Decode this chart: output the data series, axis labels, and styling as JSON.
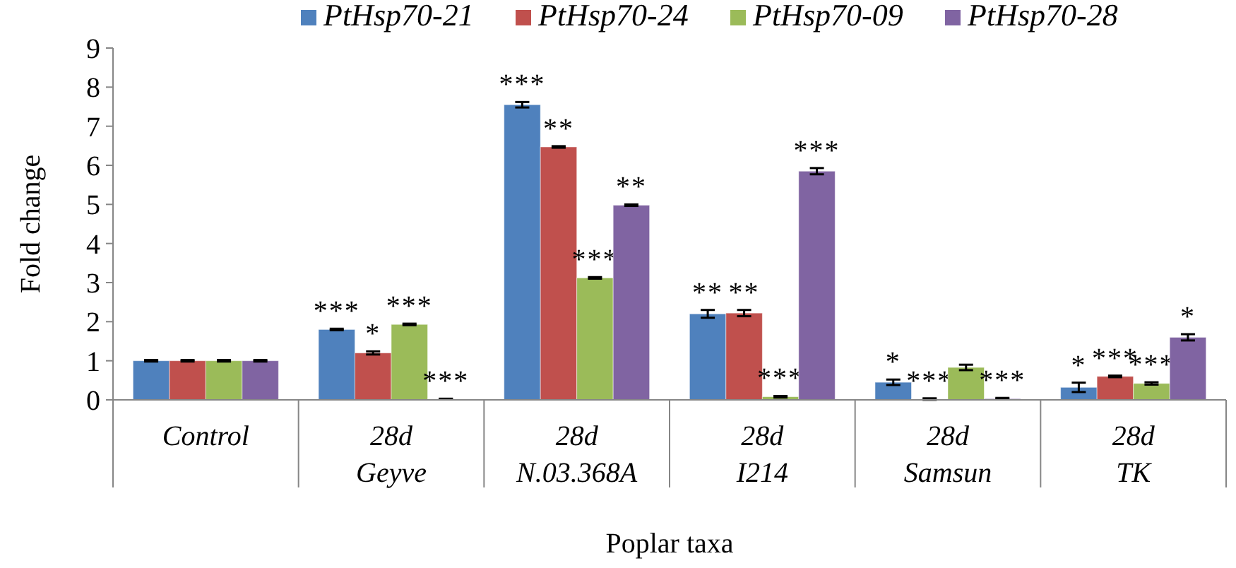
{
  "chart_data": {
    "type": "bar",
    "xlabel": "Poplar taxa",
    "ylabel": "Fold change",
    "categories": [
      "Control",
      "28d\nGeyve",
      "28d\nN.03.368A",
      "28d\nI214",
      "28d\nSamsun",
      "28d\nTK"
    ],
    "series": [
      {
        "name": "PtHsp70-21",
        "color": "#4f81bd",
        "values": [
          1,
          1.8,
          7.55,
          2.2,
          0.45,
          0.32
        ],
        "errors": [
          0.02,
          0.02,
          0.07,
          0.1,
          0.07,
          0.12
        ],
        "value_labels": [
          null,
          "***",
          "***",
          "**",
          "*",
          "*"
        ]
      },
      {
        "name": "PtHsp70-24",
        "color": "#c0504d",
        "values": [
          1,
          1.2,
          6.47,
          2.22,
          0.02,
          0.6
        ],
        "errors": [
          0.02,
          0.04,
          0.02,
          0.08,
          0.02,
          0.02
        ],
        "value_labels": [
          null,
          "*",
          "**",
          "**",
          "***",
          "***"
        ]
      },
      {
        "name": "PtHsp70-09",
        "color": "#9bbb59",
        "values": [
          1,
          1.93,
          3.12,
          0.08,
          0.83,
          0.42
        ],
        "errors": [
          0.02,
          0.02,
          0.02,
          0.02,
          0.07,
          0.03
        ],
        "value_labels": [
          null,
          "***",
          "***",
          "***",
          null,
          "***"
        ]
      },
      {
        "name": "PtHsp70-28",
        "color": "#8064a2",
        "values": [
          1,
          0.02,
          4.98,
          5.85,
          0.03,
          1.6
        ],
        "errors": [
          0.02,
          0.01,
          0.02,
          0.08,
          0.02,
          0.08
        ],
        "value_labels": [
          null,
          "***",
          "**",
          "***",
          "***",
          "*"
        ]
      }
    ],
    "ylim": [
      0,
      9
    ],
    "yticks": [
      0,
      1,
      2,
      3,
      4,
      5,
      6,
      7,
      8,
      9
    ],
    "grid": false,
    "legend": "top"
  }
}
